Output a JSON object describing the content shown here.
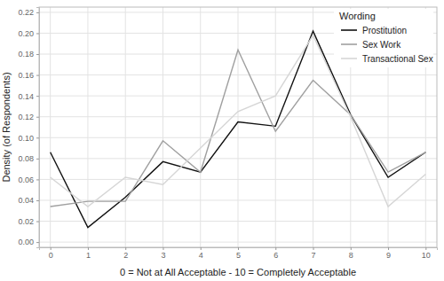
{
  "chart_data": {
    "type": "line",
    "x_label": "0 = Not at All Acceptable - 10 = Completely Acceptable",
    "y_label": "Density (of Respondents)",
    "legend_title": "Wording",
    "legend": "top-right",
    "grid": true,
    "x": [
      0,
      1,
      2,
      3,
      4,
      5,
      6,
      7,
      8,
      9,
      10
    ],
    "series": [
      {
        "name": "Prostitution",
        "color": "#111111",
        "values": [
          0.086,
          0.014,
          0.043,
          0.077,
          0.067,
          0.115,
          0.111,
          0.202,
          0.122,
          0.062,
          0.086
        ]
      },
      {
        "name": "Sex Work",
        "color": "#a0a0a0",
        "values": [
          0.034,
          0.039,
          0.039,
          0.097,
          0.067,
          0.184,
          0.106,
          0.155,
          0.122,
          0.067,
          0.086
        ]
      },
      {
        "name": "Transactional Sex",
        "color": "#d6d6d6",
        "values": [
          0.062,
          0.034,
          0.062,
          0.055,
          0.09,
          0.125,
          0.14,
          0.198,
          0.12,
          0.034,
          0.065
        ]
      }
    ],
    "xlim": [
      -0.3,
      10.3
    ],
    "xticks": [
      0,
      1,
      2,
      3,
      4,
      5,
      6,
      7,
      8,
      9,
      10
    ],
    "ylim": [
      -0.005,
      0.225
    ],
    "yticks": [
      {
        "value": 0,
        "label": "0.00"
      },
      0.02,
      0.04,
      0.06,
      0.08,
      {
        "value": 0.1,
        "label": "0.10"
      },
      0.12,
      0.14,
      0.16,
      0.18,
      {
        "value": 0.2,
        "label": "0.20"
      },
      0.22
    ]
  }
}
